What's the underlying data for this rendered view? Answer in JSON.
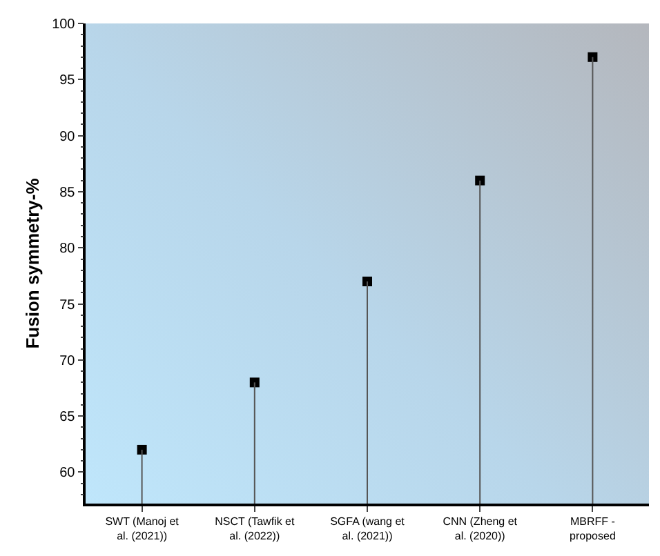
{
  "chart_data": {
    "type": "lollipop",
    "ylabel": "Fusion symmetry-%",
    "categories": [
      "SWT (Manoj et al. (2021))",
      "NSCT (Tawfik et al. (2022))",
      "SGFA (wang et al. (2021))",
      "CNN (Zheng et al. (2020))",
      "MBRFF - proposed"
    ],
    "values": [
      62,
      68,
      77,
      86,
      97
    ],
    "color": "#000000",
    "marker": "square",
    "ylim": [
      57.2,
      100
    ],
    "yticks": [
      60,
      65,
      70,
      75,
      80,
      85,
      90,
      95,
      100
    ],
    "legend": false
  }
}
